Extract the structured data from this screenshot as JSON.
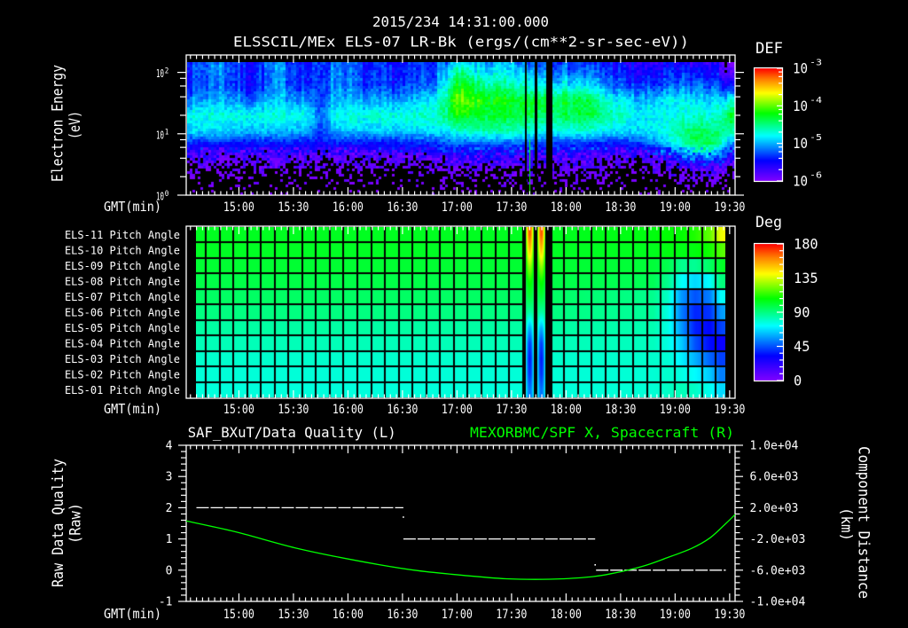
{
  "header": {
    "timestamp": "2015/234 14:31:00.000",
    "title": "ELSSCIL/MEx ELS-07 LR-Bk  (ergs/(cm**2-sr-sec-eV))"
  },
  "colors": {
    "background": "#000000",
    "foreground": "#ffffff",
    "right_axis_series": "#00ff00",
    "cell_grid": "#000000"
  },
  "colormap": [
    [
      0,
      "#8000ff"
    ],
    [
      0.18,
      "#0000ff"
    ],
    [
      0.4,
      "#00ffff"
    ],
    [
      0.6,
      "#00ff00"
    ],
    [
      0.78,
      "#ffff00"
    ],
    [
      0.9,
      "#ff8000"
    ],
    [
      1,
      "#ff0000"
    ]
  ],
  "chart_data": [
    {
      "type": "heatmap",
      "title": "ELSSCIL/MEx ELS-07 LR-Bk  (ergs/(cm**2-sr-sec-eV))",
      "xlabel": "GMT(min)",
      "ylabel": "Electron Energy",
      "ylabel_unit": "(eV)",
      "x_range": [
        "14:31",
        "19:33"
      ],
      "x_ticks": [
        "15:00",
        "15:30",
        "16:00",
        "16:30",
        "17:00",
        "17:30",
        "18:00",
        "18:30",
        "19:00",
        "19:30"
      ],
      "x_minor_ticks_per_interval": 9,
      "yscale": "log",
      "ylim": [
        1,
        192
      ],
      "y_ticks": [
        {
          "value": 100,
          "base": "10",
          "exp": "2"
        },
        {
          "value": 10,
          "base": "10",
          "exp": "1"
        },
        {
          "value": 1,
          "base": "10",
          "exp": "0"
        }
      ],
      "colorbar": {
        "label": "DEF",
        "scale": "log",
        "range": [
          1e-06,
          0.001
        ],
        "ticks": [
          {
            "value": -3,
            "base": "10",
            "exp": "-3"
          },
          {
            "value": -4,
            "base": "10",
            "exp": "-4"
          },
          {
            "value": -5,
            "base": "10",
            "exp": "-5"
          },
          {
            "value": -6,
            "base": "10",
            "exp": "-6"
          }
        ]
      },
      "energy_nodes_eV": [
        1,
        2.5,
        4.5,
        7,
        11,
        20,
        35,
        63,
        147
      ],
      "time_nodes": [
        "14:36",
        "14:49",
        "15:05",
        "15:23",
        "15:37",
        "15:44",
        "15:54",
        "16:11",
        "16:35",
        "16:51",
        "17:01",
        "17:11",
        "17:31",
        "17:51",
        "18:11",
        "18:26",
        "18:41",
        "18:56",
        "19:11",
        "19:23",
        "19:31"
      ],
      "log10_def": [
        [
          -6.3,
          -6.1,
          -5.8,
          -5.4,
          -4.9,
          -4.75,
          -5.1,
          -5.35,
          -5.3
        ],
        [
          -6.3,
          -6.1,
          -5.8,
          -5.4,
          -4.9,
          -4.7,
          -4.95,
          -5.1,
          -5.05
        ],
        [
          -6.3,
          -6.1,
          -5.8,
          -5.45,
          -4.95,
          -4.75,
          -5.15,
          -5.45,
          -5.45
        ],
        [
          -6.3,
          -6.1,
          -5.8,
          -5.4,
          -4.95,
          -4.7,
          -4.95,
          -5.1,
          -5.1
        ],
        [
          -6.3,
          -6.1,
          -5.8,
          -5.45,
          -4.95,
          -4.75,
          -5.1,
          -5.4,
          -5.4
        ],
        [
          -6.3,
          -6.1,
          -5.8,
          -5.5,
          -5.3,
          -5.2,
          -5.3,
          -5.35,
          -5.35
        ],
        [
          -6.3,
          -6.1,
          -5.8,
          -5.4,
          -4.95,
          -4.7,
          -4.95,
          -5.05,
          -5.1
        ],
        [
          -6.3,
          -6.1,
          -5.8,
          -5.45,
          -4.95,
          -4.75,
          -5.1,
          -5.4,
          -5.45
        ],
        [
          -6.3,
          -6.1,
          -5.8,
          -5.4,
          -4.9,
          -4.7,
          -5.05,
          -5.35,
          -5.45
        ],
        [
          -6.3,
          -6.1,
          -5.75,
          -5.3,
          -4.85,
          -4.6,
          -4.7,
          -5.0,
          -5.25
        ],
        [
          -6.25,
          -6.0,
          -5.6,
          -5.2,
          -4.7,
          -4.2,
          -3.95,
          -4.25,
          -4.9
        ],
        [
          -6.25,
          -6.0,
          -5.6,
          -5.2,
          -4.6,
          -4.3,
          -4.15,
          -4.5,
          -5.0
        ],
        [
          -6.25,
          -6.0,
          -5.6,
          -5.2,
          -4.65,
          -4.35,
          -4.3,
          -4.7,
          -5.1
        ],
        [
          -6.3,
          -6.0,
          -5.7,
          -5.3,
          -4.8,
          -4.4,
          -4.3,
          -4.8,
          -5.3
        ],
        [
          -6.3,
          -6.0,
          -5.7,
          -5.3,
          -4.7,
          -4.35,
          -4.35,
          -4.9,
          -5.4
        ],
        [
          -6.3,
          -6.1,
          -5.8,
          -5.4,
          -4.85,
          -4.6,
          -4.8,
          -5.2,
          -5.5
        ],
        [
          -6.3,
          -6.1,
          -5.8,
          -5.3,
          -4.9,
          -4.85,
          -5.0,
          -5.4,
          -5.7
        ],
        [
          -6.3,
          -6.0,
          -5.5,
          -4.9,
          -4.7,
          -4.8,
          -4.85,
          -5.3,
          -5.6
        ],
        [
          -6.25,
          -5.9,
          -5.1,
          -4.35,
          -4.4,
          -4.7,
          -4.85,
          -5.2,
          -5.6
        ],
        [
          -6.25,
          -5.9,
          -5.1,
          -4.45,
          -4.5,
          -4.7,
          -4.9,
          -5.3,
          -5.7
        ],
        [
          -6.3,
          -6.0,
          -5.6,
          -5.1,
          -4.6,
          -4.3,
          -4.8,
          -5.6,
          -6.2
        ]
      ],
      "data_gaps": [
        [
          "17:37:24",
          "17:38:24"
        ],
        [
          "17:42:54",
          "17:44:12"
        ],
        [
          "17:49:06",
          "17:52:24"
        ]
      ],
      "spikes": [
        {
          "time": "17:39:58",
          "emax_eV": 8,
          "log10_def": -4.2
        }
      ]
    },
    {
      "type": "heatmap",
      "xlabel": "GMT(min)",
      "x_range": [
        "14:31",
        "19:33"
      ],
      "x_ticks": [
        "15:00",
        "15:30",
        "16:00",
        "16:30",
        "17:00",
        "17:30",
        "18:00",
        "18:30",
        "19:00",
        "19:30"
      ],
      "x_minor_ticks_per_interval": 9,
      "channels": [
        "ELS-11 Pitch Angle",
        "ELS-10 Pitch Angle",
        "ELS-09 Pitch Angle",
        "ELS-08 Pitch Angle",
        "ELS-07 Pitch Angle",
        "ELS-06 Pitch Angle",
        "ELS-05 Pitch Angle",
        "ELS-04 Pitch Angle",
        "ELS-03 Pitch Angle",
        "ELS-02 Pitch Angle",
        "ELS-01 Pitch Angle"
      ],
      "colorbar": {
        "label": "Deg",
        "scale": "linear",
        "range": [
          0,
          180
        ],
        "ticks": [
          "180",
          "135",
          "90",
          "45",
          "0"
        ],
        "major_step": 45,
        "minor_step": 9
      },
      "data_range": [
        "14:36:36",
        "19:27:54"
      ],
      "cell_grid": {
        "first_edge": "14:41:44",
        "step_min": 7.586
      },
      "time_nodes": [
        "14:36:36",
        "17:36:00",
        "17:53:00",
        "18:48:00",
        "18:56:00",
        "19:03:30",
        "19:11:00",
        "19:19:00",
        "19:25:00",
        "19:27:54"
      ],
      "pitch_angle_deg": [
        [
          103.5,
          103.5,
          103.5,
          106,
          108,
          108,
          112,
          120,
          138,
          140
        ],
        [
          103,
          103,
          103,
          104,
          106,
          105,
          106,
          110,
          118,
          120
        ],
        [
          101,
          101,
          101,
          100,
          97,
          88,
          87,
          94,
          102,
          104
        ],
        [
          98,
          98,
          98,
          96,
          88,
          73,
          66,
          72,
          90,
          92
        ],
        [
          94,
          94,
          94,
          88,
          80,
          56,
          45,
          52,
          72,
          75
        ],
        [
          90,
          90,
          90,
          86,
          76,
          52,
          38,
          40,
          56,
          58
        ],
        [
          85,
          85,
          85,
          83,
          76,
          56,
          37,
          33,
          42,
          44
        ],
        [
          82,
          82,
          82,
          81,
          76,
          64,
          45,
          34,
          30,
          30
        ],
        [
          79,
          79,
          79,
          79,
          78,
          70,
          60,
          48,
          42,
          42
        ],
        [
          77.5,
          77.5,
          77.5,
          78,
          79,
          76,
          72,
          64,
          52,
          52
        ],
        [
          77,
          77,
          77,
          78,
          80,
          82,
          80,
          74,
          66,
          66
        ]
      ],
      "stripes": [
        {
          "start": "17:37:52",
          "end": "17:42:15"
        },
        {
          "start": "17:44:12",
          "end": "17:48:36"
        }
      ],
      "stripe_pitch_angle_deg": [
        168,
        150,
        128,
        110,
        100,
        85,
        60,
        42,
        36,
        40,
        50
      ],
      "data_gaps": [
        [
          "17:35:54",
          "17:37:52"
        ],
        [
          "17:42:15",
          "17:44:12"
        ],
        [
          "17:48:36",
          "17:52:30"
        ]
      ]
    },
    {
      "type": "line",
      "title_left": "SAF_BXuT/Data Quality (L)",
      "title_right": "MEXORBMC/SPF X, Spacecraft (R)",
      "xlabel": "GMT(min)",
      "x_range": [
        "14:31",
        "19:33"
      ],
      "x_ticks": [
        "15:00",
        "15:30",
        "16:00",
        "16:30",
        "17:00",
        "17:30",
        "18:00",
        "18:30",
        "19:00",
        "19:30"
      ],
      "x_minor_ticks_per_interval": 9,
      "ylabel_left": "Raw Data Quality",
      "ylabel_left_unit": "(Raw)",
      "ylabel_right": "Component Distance",
      "ylabel_right_unit": "(km)",
      "ylim_left": [
        -1,
        4
      ],
      "ylim_right": [
        -10000,
        10000
      ],
      "y_ticks_left": [
        "4",
        "3",
        "2",
        "1",
        "0",
        "-1"
      ],
      "y_ticks_right": [
        "1.0e+04",
        "6.0e+03",
        "2.0e+03",
        "-2.0e+03",
        "-6.0e+03",
        "-1.0e+04"
      ],
      "y_minor_per_major": 5,
      "series": [
        {
          "name": "SAF_BXuT/Data Quality",
          "axis": "left",
          "color": "#ffffff",
          "style": "dashed",
          "segments": [
            {
              "start": "14:36:36",
              "end": "16:30:30",
              "value": 2
            },
            {
              "start": "16:30:30",
              "end": "18:16:00",
              "value": 1
            },
            {
              "start": "18:16:30",
              "end": "19:27:54",
              "value": 0
            }
          ],
          "points": [
            {
              "time": "16:30:30",
              "value": 1.7
            },
            {
              "time": "18:16:00",
              "value": 0.17
            }
          ]
        },
        {
          "name": "MEXORBMC/SPF X, Spacecraft",
          "axis": "right",
          "color": "#00ff00",
          "style": "solid",
          "x": [
            "14:31",
            "14:59",
            "15:31",
            "16:04",
            "16:36",
            "17:07",
            "17:27",
            "17:43",
            "17:59",
            "18:15",
            "18:25",
            "18:35",
            "18:45",
            "18:54",
            "19:09",
            "19:19",
            "19:28",
            "19:33"
          ],
          "values": [
            307,
            -1136,
            -3148,
            -4739,
            -5989,
            -6739,
            -7100,
            -7180,
            -7100,
            -6818,
            -6443,
            -5943,
            -5300,
            -4545,
            -3216,
            -1898,
            0,
            1136
          ]
        }
      ]
    }
  ]
}
